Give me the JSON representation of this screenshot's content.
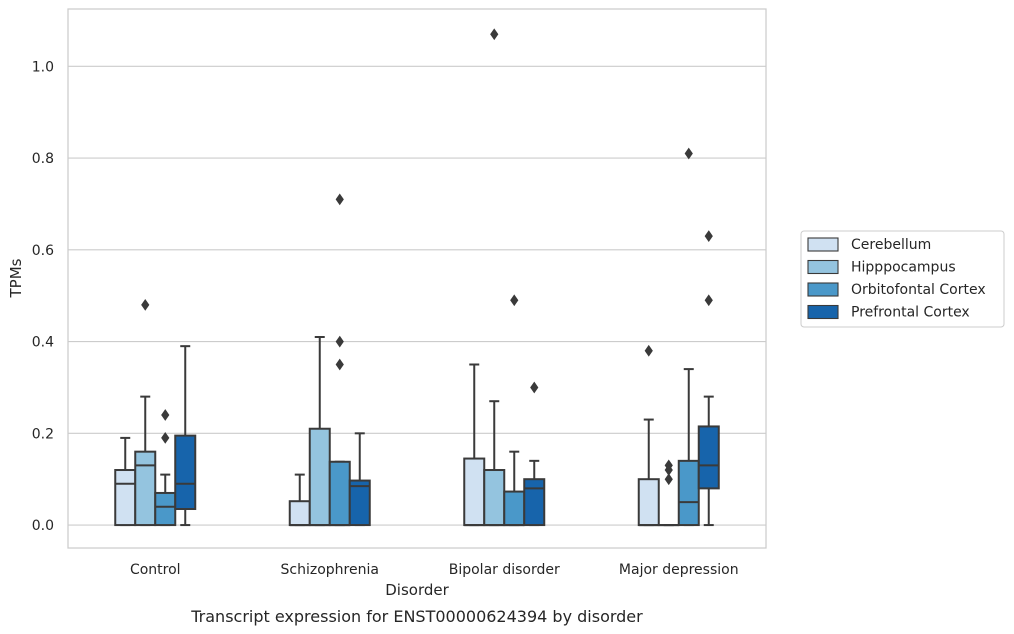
{
  "chart_data": {
    "type": "box",
    "title": "Transcript expression for ENST00000624394 by disorder",
    "xlabel": "Disorder",
    "ylabel": "TPMs",
    "ylim": [
      -0.05,
      1.125
    ],
    "yticks": [
      "0.0",
      "0.2",
      "0.4",
      "0.6",
      "0.8",
      "1.0"
    ],
    "ytick_values": [
      0.0,
      0.2,
      0.4,
      0.6,
      0.8,
      1.0
    ],
    "grid": "horizontal",
    "legend_position": "right",
    "categories": [
      "Control",
      "Schizophrenia",
      "Bipolar disorder",
      "Major depression"
    ],
    "series": [
      {
        "name": "Cerebellum",
        "color": "#d0e1f2",
        "boxes": [
          {
            "whislo": 0.0,
            "q1": 0.0,
            "med": 0.09,
            "q3": 0.12,
            "whishi": 0.19,
            "fliers": []
          },
          {
            "whislo": 0.0,
            "q1": 0.0,
            "med": 0.0,
            "q3": 0.052,
            "whishi": 0.11,
            "fliers": []
          },
          {
            "whislo": 0.0,
            "q1": 0.0,
            "med": 0.0,
            "q3": 0.145,
            "whishi": 0.35,
            "fliers": []
          },
          {
            "whislo": 0.0,
            "q1": 0.0,
            "med": 0.0,
            "q3": 0.1,
            "whishi": 0.23,
            "fliers": [
              0.38
            ]
          }
        ]
      },
      {
        "name": "Hipppocampus",
        "color": "#94c4df",
        "boxes": [
          {
            "whislo": 0.0,
            "q1": 0.0,
            "med": 0.13,
            "q3": 0.16,
            "whishi": 0.28,
            "fliers": [
              0.48
            ]
          },
          {
            "whislo": 0.0,
            "q1": 0.0,
            "med": 0.0,
            "q3": 0.21,
            "whishi": 0.41,
            "fliers": []
          },
          {
            "whislo": 0.0,
            "q1": 0.0,
            "med": 0.0,
            "q3": 0.12,
            "whishi": 0.27,
            "fliers": [
              1.07
            ]
          },
          {
            "whislo": 0.0,
            "q1": 0.0,
            "med": 0.0,
            "q3": 0.0,
            "whishi": 0.0,
            "fliers": [
              0.1,
              0.12,
              0.13
            ]
          }
        ]
      },
      {
        "name": "Orbitofontal Cortex",
        "color": "#4a98c9",
        "boxes": [
          {
            "whislo": 0.0,
            "q1": 0.0,
            "med": 0.04,
            "q3": 0.07,
            "whishi": 0.11,
            "fliers": [
              0.19,
              0.24
            ]
          },
          {
            "whislo": 0.0,
            "q1": 0.0,
            "med": 0.0,
            "q3": 0.138,
            "whishi": 0.138,
            "fliers": [
              0.35,
              0.4,
              0.71
            ]
          },
          {
            "whislo": 0.0,
            "q1": 0.0,
            "med": 0.0,
            "q3": 0.073,
            "whishi": 0.16,
            "fliers": [
              0.49
            ]
          },
          {
            "whislo": 0.0,
            "q1": 0.0,
            "med": 0.05,
            "q3": 0.14,
            "whishi": 0.34,
            "fliers": [
              0.81
            ]
          }
        ]
      },
      {
        "name": "Prefrontal Cortex",
        "color": "#1764ab",
        "boxes": [
          {
            "whislo": 0.0,
            "q1": 0.035,
            "med": 0.09,
            "q3": 0.195,
            "whishi": 0.39,
            "fliers": []
          },
          {
            "whislo": 0.0,
            "q1": 0.0,
            "med": 0.085,
            "q3": 0.097,
            "whishi": 0.2,
            "fliers": []
          },
          {
            "whislo": 0.0,
            "q1": 0.0,
            "med": 0.08,
            "q3": 0.1,
            "whishi": 0.14,
            "fliers": [
              0.3
            ]
          },
          {
            "whislo": 0.0,
            "q1": 0.08,
            "med": 0.13,
            "q3": 0.215,
            "whishi": 0.28,
            "fliers": [
              0.49,
              0.63
            ]
          }
        ]
      }
    ]
  }
}
